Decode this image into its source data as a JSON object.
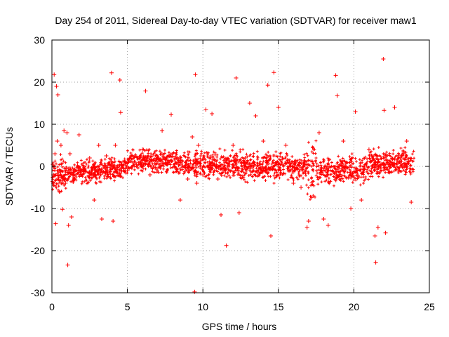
{
  "chart_data": {
    "type": "scatter",
    "title": "Day 254 of 2011, Sidereal Day-to-day VTEC variation (SDTVAR) for receiver maw1",
    "xlabel": "GPS time / hours",
    "ylabel": "SDTVAR / TECUs",
    "xlim": [
      0,
      25
    ],
    "ylim": [
      -30,
      30
    ],
    "xticks": [
      0,
      5,
      10,
      15,
      20,
      25
    ],
    "yticks": [
      -30,
      -20,
      -10,
      0,
      10,
      20,
      30
    ],
    "grid": true,
    "marker": "plus",
    "series": [
      {
        "name": "SDTVAR",
        "color": "#ff0000",
        "points": [
          [
            0.1,
            -2.0
          ],
          [
            0.15,
            21.8
          ],
          [
            0.2,
            3.0
          ],
          [
            0.25,
            -13.6
          ],
          [
            0.3,
            19.0
          ],
          [
            0.35,
            6.0
          ],
          [
            0.4,
            17.0
          ],
          [
            0.5,
            -6.0
          ],
          [
            0.6,
            5.0
          ],
          [
            0.7,
            -10.2
          ],
          [
            0.8,
            8.5
          ],
          [
            0.9,
            -4.0
          ],
          [
            1.0,
            8.0
          ],
          [
            1.05,
            -23.4
          ],
          [
            1.1,
            -14.0
          ],
          [
            1.2,
            3.0
          ],
          [
            1.3,
            -12.0
          ],
          [
            1.5,
            -3.0
          ],
          [
            1.8,
            7.5
          ],
          [
            2.0,
            -2.0
          ],
          [
            2.5,
            2.0
          ],
          [
            2.8,
            -8.0
          ],
          [
            3.1,
            5.0
          ],
          [
            3.3,
            -12.5
          ],
          [
            3.6,
            2.5
          ],
          [
            3.95,
            22.2
          ],
          [
            4.05,
            -13.0
          ],
          [
            4.2,
            5.0
          ],
          [
            4.5,
            20.5
          ],
          [
            4.55,
            12.8
          ],
          [
            5.0,
            -1.0
          ],
          [
            5.5,
            1.0
          ],
          [
            6.0,
            4.0
          ],
          [
            6.2,
            17.9
          ],
          [
            6.5,
            -2.0
          ],
          [
            7.0,
            2.0
          ],
          [
            7.3,
            8.5
          ],
          [
            7.8,
            2.5
          ],
          [
            7.9,
            12.3
          ],
          [
            8.5,
            -8.0
          ],
          [
            9.0,
            -3.0
          ],
          [
            9.3,
            7.0
          ],
          [
            9.45,
            -29.8
          ],
          [
            9.5,
            21.8
          ],
          [
            9.6,
            -4.0
          ],
          [
            9.7,
            5.0
          ],
          [
            10.0,
            -2.0
          ],
          [
            10.2,
            13.5
          ],
          [
            10.6,
            12.5
          ],
          [
            11.0,
            -3.0
          ],
          [
            11.2,
            -11.5
          ],
          [
            11.55,
            -18.8
          ],
          [
            12.0,
            5.0
          ],
          [
            12.2,
            21.0
          ],
          [
            12.4,
            -11.0
          ],
          [
            12.8,
            2.0
          ],
          [
            13.1,
            15.0
          ],
          [
            13.5,
            12.0
          ],
          [
            14.0,
            6.0
          ],
          [
            14.3,
            19.3
          ],
          [
            14.5,
            -16.5
          ],
          [
            14.7,
            22.3
          ],
          [
            15.0,
            14.0
          ],
          [
            15.5,
            5.0
          ],
          [
            16.0,
            -4.0
          ],
          [
            16.5,
            -5.0
          ],
          [
            16.9,
            -14.5
          ],
          [
            17.0,
            -13.0
          ],
          [
            17.3,
            -7.0
          ],
          [
            17.7,
            8.0
          ],
          [
            18.0,
            -12.5
          ],
          [
            18.3,
            -14.0
          ],
          [
            18.8,
            21.6
          ],
          [
            18.9,
            16.8
          ],
          [
            19.3,
            6.0
          ],
          [
            19.8,
            -10.0
          ],
          [
            20.1,
            13.0
          ],
          [
            20.5,
            -8.0
          ],
          [
            21.0,
            4.0
          ],
          [
            21.4,
            -16.5
          ],
          [
            21.45,
            -22.8
          ],
          [
            21.6,
            -14.5
          ],
          [
            21.95,
            25.5
          ],
          [
            22.0,
            13.3
          ],
          [
            22.1,
            -15.8
          ],
          [
            22.7,
            14.0
          ],
          [
            23.1,
            2.0
          ],
          [
            23.5,
            6.0
          ],
          [
            23.8,
            -8.5
          ]
        ]
      }
    ]
  }
}
